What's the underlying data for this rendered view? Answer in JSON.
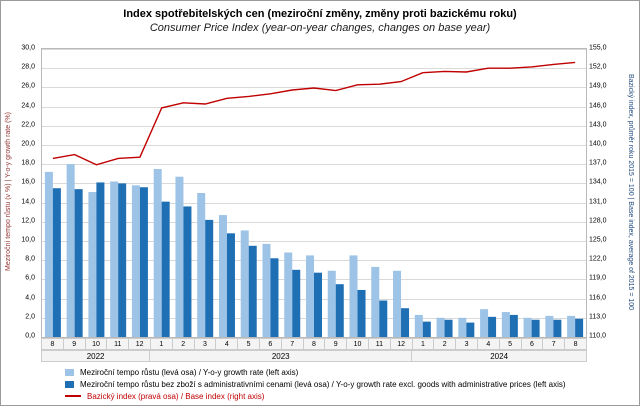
{
  "title": "Index spotřebitelských cen (meziroční změny, změny proti bazickému roku)",
  "subtitle": "Consumer Price Index (year-on-year changes, changes on base year)",
  "left_axis_label": "Meziroční tempo růstu (v %) | Y-o-y growth rate (%)",
  "right_axis_label": "Bazický index, průměr roku 2015 = 100 | Base index, average of 2015 = 100",
  "colors": {
    "left_axis_label": "#943634",
    "right_axis_label": "#1F497D",
    "gridline": "#d9d9d9",
    "bar_light": "#9DC3E6",
    "bar_dark": "#1F6FB5",
    "line_red": "#C00000"
  },
  "chart_data": {
    "type": "bar",
    "categories": [
      "8",
      "9",
      "10",
      "11",
      "12",
      "1",
      "2",
      "3",
      "4",
      "5",
      "6",
      "7",
      "8",
      "9",
      "10",
      "11",
      "12",
      "1",
      "2",
      "3",
      "4",
      "5",
      "6",
      "7",
      "8"
    ],
    "year_groups": [
      {
        "label": "2022",
        "span": 5
      },
      {
        "label": "2023",
        "span": 12
      },
      {
        "label": "2024",
        "span": 8
      }
    ],
    "series": [
      {
        "name": "Meziroční tempo růstu (levá osa) / Y-o-y growth rate (left axis)",
        "type": "bar",
        "axis": "left",
        "color": "#9DC3E6",
        "values": [
          17.2,
          18.0,
          15.1,
          16.2,
          15.8,
          17.5,
          16.7,
          15.0,
          12.7,
          11.1,
          9.7,
          8.8,
          8.5,
          6.9,
          8.5,
          7.3,
          6.9,
          2.3,
          2.0,
          2.0,
          2.9,
          2.6,
          2.0,
          2.2,
          2.2
        ]
      },
      {
        "name": "Meziroční tempo růstu bez zboží s administrativními cenami (levá osa) / Y-o-y growth rate excl. goods with administrative prices (left axis)",
        "type": "bar",
        "axis": "left",
        "color": "#1F6FB5",
        "values": [
          15.5,
          15.4,
          16.1,
          16.0,
          15.6,
          14.1,
          13.6,
          12.2,
          10.8,
          9.5,
          8.2,
          7.0,
          6.7,
          5.5,
          4.9,
          3.8,
          3.0,
          1.6,
          1.8,
          1.5,
          2.1,
          2.3,
          1.8,
          1.8,
          1.9
        ]
      },
      {
        "name": "Bazický index (pravá osa) / Base index (right axis)",
        "type": "line",
        "axis": "right",
        "color": "#C00000",
        "values": [
          137.9,
          138.5,
          136.9,
          137.9,
          138.1,
          145.8,
          146.6,
          146.4,
          147.3,
          147.6,
          148.0,
          148.6,
          148.9,
          148.5,
          149.4,
          149.5,
          149.9,
          151.3,
          151.5,
          151.4,
          152.0,
          152.0,
          152.2,
          152.6,
          152.9
        ]
      }
    ],
    "left_axis": {
      "min": 0,
      "max": 30,
      "step": 2
    },
    "right_axis": {
      "min": 110,
      "max": 155,
      "step": 3
    },
    "grid": true,
    "legend_position": "bottom-left"
  }
}
